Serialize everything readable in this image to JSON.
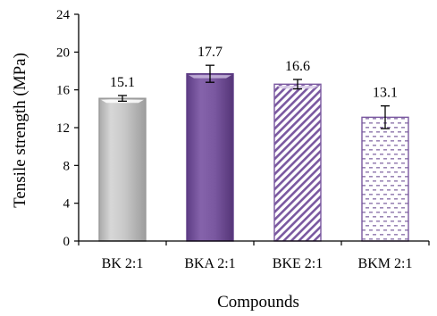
{
  "chart_data": {
    "type": "bar",
    "title": "",
    "xlabel": "Compounds",
    "ylabel": "Tensile  strength  (MPa)",
    "ylim": [
      0,
      24
    ],
    "yticks": [
      "0",
      "4",
      "8",
      "12",
      "16",
      "20",
      "24"
    ],
    "grid": false,
    "legend": "none",
    "categories": [
      "BK 2:1",
      "BKA 2:1",
      "BKE 2:1",
      "BKM 2:1"
    ],
    "values": [
      15.1,
      17.7,
      16.6,
      13.1
    ],
    "value_labels": [
      "15.1",
      "17.7",
      "16.6",
      "13.1"
    ],
    "errors": [
      0.3,
      0.9,
      0.5,
      1.2
    ],
    "bar_styles": [
      {
        "fill": "solid",
        "color": "#c4c4c4",
        "edge": "#9a9a9a"
      },
      {
        "fill": "solid",
        "color": "#7a58a0",
        "edge": "#5e3d85"
      },
      {
        "fill": "diagonal-hatch",
        "color": "#7a58a0",
        "edge": "#7a58a0"
      },
      {
        "fill": "dots",
        "color": "#7a58a0",
        "edge": "#7a58a0"
      }
    ]
  }
}
